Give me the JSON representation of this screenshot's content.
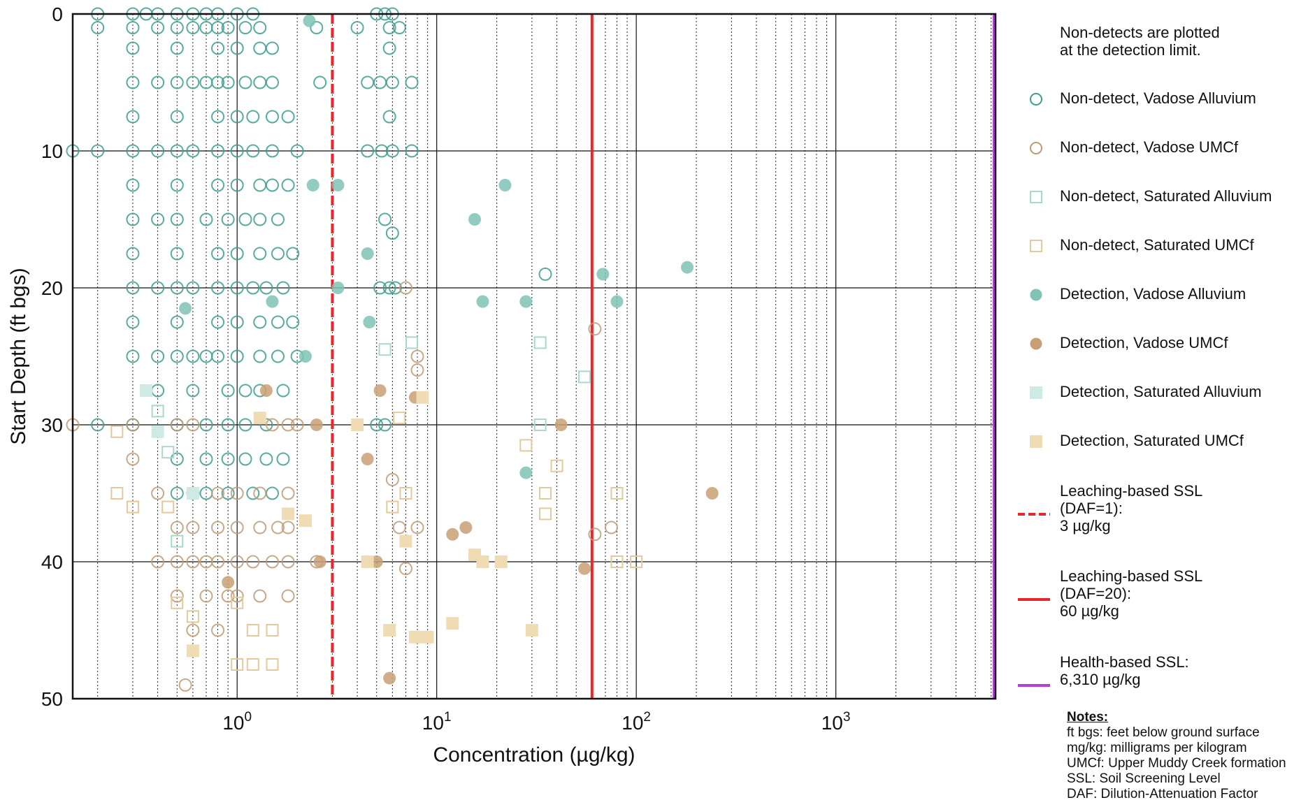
{
  "chart_data": {
    "type": "scatter",
    "x_scale": "log",
    "xlim": [
      0.15,
      6310
    ],
    "ylim": [
      0,
      50
    ],
    "y_inverted": true,
    "grid": "major solid, minor dotted vertical; major horizontal",
    "xlabel": "Concentration (µg/kg)",
    "ylabel": "Start Depth (ft bgs)",
    "x_ticks": [
      {
        "value": 1,
        "base": "10",
        "exp": "0"
      },
      {
        "value": 10,
        "base": "10",
        "exp": "1"
      },
      {
        "value": 100,
        "base": "10",
        "exp": "2"
      },
      {
        "value": 1000,
        "base": "10",
        "exp": "3"
      }
    ],
    "y_ticks": [
      {
        "value": 0,
        "label": "0"
      },
      {
        "value": 10,
        "label": "10"
      },
      {
        "value": 20,
        "label": "20"
      },
      {
        "value": 30,
        "label": "30"
      },
      {
        "value": 40,
        "label": "40"
      },
      {
        "value": 50,
        "label": "50"
      }
    ],
    "reference_lines": [
      {
        "name": "Leaching-based SSL (DAF=1)",
        "x": 3,
        "color": "#e8262b",
        "style": "dashed"
      },
      {
        "name": "Leaching-based SSL (DAF=20)",
        "x": 60,
        "color": "#e8262b",
        "style": "solid"
      },
      {
        "name": "Health-based SSL",
        "x": 6310,
        "color": "#b43ed6",
        "style": "solid"
      }
    ],
    "series": [
      {
        "name": "Non-detect, Vadose Alluvium",
        "marker": "circle-open",
        "color": "#3d9e8e",
        "points": [
          [
            0.2,
            0
          ],
          [
            0.3,
            0
          ],
          [
            0.35,
            0
          ],
          [
            0.4,
            0
          ],
          [
            0.5,
            0
          ],
          [
            0.6,
            0
          ],
          [
            0.7,
            0
          ],
          [
            0.8,
            0
          ],
          [
            1,
            0
          ],
          [
            1.2,
            0
          ],
          [
            5,
            0
          ],
          [
            5.5,
            0
          ],
          [
            6,
            0
          ],
          [
            0.2,
            1
          ],
          [
            0.3,
            1
          ],
          [
            0.4,
            1
          ],
          [
            0.5,
            1
          ],
          [
            0.6,
            1
          ],
          [
            0.7,
            1
          ],
          [
            0.8,
            1
          ],
          [
            0.9,
            1
          ],
          [
            1.1,
            1
          ],
          [
            1.3,
            1
          ],
          [
            2.5,
            1
          ],
          [
            4,
            1
          ],
          [
            5.8,
            1
          ],
          [
            6.5,
            1
          ],
          [
            0.3,
            2.5
          ],
          [
            0.5,
            2.5
          ],
          [
            0.8,
            2.5
          ],
          [
            1,
            2.5
          ],
          [
            1.3,
            2.5
          ],
          [
            1.5,
            2.5
          ],
          [
            5.8,
            2.5
          ],
          [
            0.3,
            5
          ],
          [
            0.4,
            5
          ],
          [
            0.5,
            5
          ],
          [
            0.6,
            5
          ],
          [
            0.7,
            5
          ],
          [
            0.8,
            5
          ],
          [
            0.9,
            5
          ],
          [
            1.1,
            5
          ],
          [
            1.3,
            5
          ],
          [
            1.5,
            5
          ],
          [
            2.6,
            5
          ],
          [
            4.5,
            5
          ],
          [
            5.2,
            5
          ],
          [
            6,
            5
          ],
          [
            7.5,
            5
          ],
          [
            0.3,
            7.5
          ],
          [
            0.5,
            7.5
          ],
          [
            0.8,
            7.5
          ],
          [
            1,
            7.5
          ],
          [
            1.2,
            7.5
          ],
          [
            1.5,
            7.5
          ],
          [
            1.8,
            7.5
          ],
          [
            5.8,
            7.5
          ],
          [
            0.15,
            10
          ],
          [
            0.2,
            10
          ],
          [
            0.3,
            10
          ],
          [
            0.4,
            10
          ],
          [
            0.5,
            10
          ],
          [
            0.6,
            10
          ],
          [
            0.8,
            10
          ],
          [
            1,
            10
          ],
          [
            1.2,
            10
          ],
          [
            1.5,
            10
          ],
          [
            2,
            10
          ],
          [
            4.5,
            10
          ],
          [
            5.3,
            10
          ],
          [
            6,
            10
          ],
          [
            7.5,
            10
          ],
          [
            0.3,
            12.5
          ],
          [
            0.5,
            12.5
          ],
          [
            0.8,
            12.5
          ],
          [
            1,
            12.5
          ],
          [
            1.3,
            12.5
          ],
          [
            1.5,
            12.5
          ],
          [
            1.8,
            12.5
          ],
          [
            0.3,
            15
          ],
          [
            0.4,
            15
          ],
          [
            0.5,
            15
          ],
          [
            0.7,
            15
          ],
          [
            0.9,
            15
          ],
          [
            1.1,
            15
          ],
          [
            1.3,
            15
          ],
          [
            1.6,
            15
          ],
          [
            5.5,
            15
          ],
          [
            0.3,
            17.5
          ],
          [
            0.5,
            17.5
          ],
          [
            0.8,
            17.5
          ],
          [
            1,
            17.5
          ],
          [
            1.3,
            17.5
          ],
          [
            1.6,
            17.5
          ],
          [
            1.9,
            17.5
          ],
          [
            6,
            16
          ],
          [
            0.3,
            20
          ],
          [
            0.4,
            20
          ],
          [
            0.5,
            20
          ],
          [
            0.6,
            20
          ],
          [
            0.8,
            20
          ],
          [
            1,
            20
          ],
          [
            1.2,
            20
          ],
          [
            1.4,
            20
          ],
          [
            1.7,
            20
          ],
          [
            5.2,
            20
          ],
          [
            5.8,
            20
          ],
          [
            6.2,
            20
          ],
          [
            35,
            19
          ],
          [
            0.3,
            22.5
          ],
          [
            0.5,
            22.5
          ],
          [
            0.8,
            22.5
          ],
          [
            1,
            22.5
          ],
          [
            1.3,
            22.5
          ],
          [
            1.6,
            22.5
          ],
          [
            1.9,
            22.5
          ],
          [
            0.3,
            25
          ],
          [
            0.4,
            25
          ],
          [
            0.5,
            25
          ],
          [
            0.6,
            25
          ],
          [
            0.7,
            25
          ],
          [
            0.8,
            25
          ],
          [
            1,
            25
          ],
          [
            1.3,
            25
          ],
          [
            1.6,
            25
          ],
          [
            2,
            25
          ],
          [
            0.4,
            27.5
          ],
          [
            0.6,
            27.5
          ],
          [
            0.9,
            27.5
          ],
          [
            1.1,
            27.5
          ],
          [
            1.3,
            27.5
          ],
          [
            1.7,
            27.5
          ],
          [
            0.2,
            30
          ],
          [
            0.3,
            30
          ],
          [
            0.5,
            30
          ],
          [
            0.7,
            30
          ],
          [
            0.9,
            30
          ],
          [
            1.1,
            30
          ],
          [
            1.4,
            30
          ],
          [
            5,
            30
          ],
          [
            5.5,
            30
          ],
          [
            0.5,
            32.5
          ],
          [
            0.7,
            32.5
          ],
          [
            0.9,
            32.5
          ],
          [
            1.1,
            32.5
          ],
          [
            1.4,
            32.5
          ],
          [
            1.7,
            32.5
          ],
          [
            0.5,
            35
          ],
          [
            0.7,
            35
          ],
          [
            0.9,
            35
          ],
          [
            1.2,
            35
          ],
          [
            1.5,
            35
          ]
        ]
      },
      {
        "name": "Non-detect, Vadose UMCf",
        "marker": "circle-open",
        "color": "#c09a74",
        "points": [
          [
            0.15,
            30
          ],
          [
            0.3,
            30
          ],
          [
            0.3,
            32.5
          ],
          [
            0.5,
            30
          ],
          [
            0.6,
            30
          ],
          [
            1.5,
            30
          ],
          [
            1.8,
            30
          ],
          [
            2,
            30
          ],
          [
            0.4,
            35
          ],
          [
            0.6,
            35
          ],
          [
            0.8,
            35
          ],
          [
            1,
            35
          ],
          [
            1.3,
            35
          ],
          [
            1.8,
            35
          ],
          [
            6,
            34
          ],
          [
            8,
            25
          ],
          [
            8,
            26
          ],
          [
            0.5,
            37.5
          ],
          [
            0.6,
            37.5
          ],
          [
            0.8,
            37.5
          ],
          [
            1,
            37.5
          ],
          [
            1.3,
            37.5
          ],
          [
            1.6,
            37.5
          ],
          [
            1.8,
            37.5
          ],
          [
            6.5,
            37.5
          ],
          [
            8,
            37.5
          ],
          [
            75,
            37.5
          ],
          [
            0.4,
            40
          ],
          [
            0.5,
            40
          ],
          [
            0.6,
            40
          ],
          [
            0.7,
            40
          ],
          [
            0.8,
            40
          ],
          [
            1,
            40
          ],
          [
            1.2,
            40
          ],
          [
            1.5,
            40
          ],
          [
            1.8,
            40
          ],
          [
            2.5,
            40
          ],
          [
            7,
            40.5
          ],
          [
            0.5,
            42.5
          ],
          [
            0.7,
            42.5
          ],
          [
            0.9,
            42.5
          ],
          [
            1,
            42.5
          ],
          [
            1.3,
            42.5
          ],
          [
            1.8,
            42.5
          ],
          [
            0.6,
            45
          ],
          [
            0.8,
            45
          ],
          [
            0.55,
            49
          ],
          [
            62,
            38
          ],
          [
            62,
            23
          ],
          [
            7,
            20
          ]
        ]
      },
      {
        "name": "Non-detect, Saturated Alluvium",
        "marker": "square-open",
        "color": "#a8d8d0",
        "points": [
          [
            0.4,
            29
          ],
          [
            0.45,
            32
          ],
          [
            0.5,
            38.5
          ],
          [
            5.5,
            24.5
          ],
          [
            7.5,
            24
          ],
          [
            33,
            24
          ],
          [
            55,
            26.5
          ],
          [
            33,
            30
          ]
        ]
      },
      {
        "name": "Non-detect, Saturated UMCf",
        "marker": "square-open",
        "color": "#e3c99c",
        "points": [
          [
            0.25,
            30.5
          ],
          [
            0.25,
            35
          ],
          [
            0.3,
            36
          ],
          [
            0.45,
            36
          ],
          [
            0.5,
            43
          ],
          [
            0.6,
            44
          ],
          [
            1,
            47.5
          ],
          [
            1.2,
            47.5
          ],
          [
            1.5,
            47.5
          ],
          [
            1.5,
            45
          ],
          [
            1.2,
            45
          ],
          [
            1,
            43
          ],
          [
            6,
            36
          ],
          [
            7,
            35
          ],
          [
            28,
            31.5
          ],
          [
            35,
            35
          ],
          [
            35,
            36.5
          ],
          [
            40,
            33
          ],
          [
            80,
            35
          ],
          [
            80,
            40
          ],
          [
            100,
            40
          ],
          [
            6.5,
            29.5
          ]
        ]
      },
      {
        "name": "Detection, Vadose Alluvium",
        "marker": "circle-filled",
        "color": "#7fc3b5",
        "points": [
          [
            2.3,
            0.5
          ],
          [
            3.2,
            12.5
          ],
          [
            2.4,
            12.5
          ],
          [
            4.5,
            17.5
          ],
          [
            3.2,
            20
          ],
          [
            4.6,
            22.5
          ],
          [
            15.5,
            15
          ],
          [
            17,
            21
          ],
          [
            22,
            12.5
          ],
          [
            28,
            21
          ],
          [
            68,
            19
          ],
          [
            80,
            21
          ],
          [
            180,
            18.5
          ],
          [
            28,
            33.5
          ],
          [
            0.55,
            21.5
          ],
          [
            1.5,
            21
          ],
          [
            2.2,
            25
          ]
        ]
      },
      {
        "name": "Detection, Vadose UMCf",
        "marker": "circle-filled",
        "color": "#c9a076",
        "points": [
          [
            1.4,
            27.5
          ],
          [
            5.2,
            27.5
          ],
          [
            7.8,
            28
          ],
          [
            2.5,
            30
          ],
          [
            4.5,
            32.5
          ],
          [
            12,
            38
          ],
          [
            14,
            37.5
          ],
          [
            42,
            30
          ],
          [
            55,
            40.5
          ],
          [
            240,
            35
          ],
          [
            0.9,
            41.5
          ],
          [
            5.8,
            48.5
          ],
          [
            2.6,
            40
          ],
          [
            5,
            40
          ]
        ]
      },
      {
        "name": "Detection, Saturated Alluvium",
        "marker": "square-filled",
        "color": "#cfe9e4",
        "points": [
          [
            0.35,
            27.5
          ],
          [
            0.4,
            30.5
          ],
          [
            0.6,
            35
          ]
        ]
      },
      {
        "name": "Detection, Saturated UMCf",
        "marker": "square-filled",
        "color": "#efdcb4",
        "points": [
          [
            0.6,
            46.5
          ],
          [
            1.3,
            29.5
          ],
          [
            1.8,
            36.5
          ],
          [
            2.2,
            37
          ],
          [
            4,
            30
          ],
          [
            4.5,
            40
          ],
          [
            5.8,
            45
          ],
          [
            7.8,
            45.5
          ],
          [
            8.5,
            28
          ],
          [
            9,
            45.5
          ],
          [
            12,
            44.5
          ],
          [
            17,
            40
          ],
          [
            21,
            40
          ],
          [
            30,
            45
          ],
          [
            15.5,
            39.5
          ],
          [
            7,
            38.5
          ]
        ]
      }
    ]
  },
  "legend": {
    "intro": "Non-detects are plotted\nat the detection limit.",
    "items": [
      {
        "label": "Non-detect, Vadose Alluvium"
      },
      {
        "label": "Non-detect, Vadose UMCf"
      },
      {
        "label": "Non-detect, Saturated Alluvium"
      },
      {
        "label": "Non-detect, Saturated UMCf"
      },
      {
        "label": "Detection, Vadose Alluvium"
      },
      {
        "label": "Detection, Vadose UMCf"
      },
      {
        "label": "Detection, Saturated Alluvium"
      },
      {
        "label": "Detection, Saturated UMCf"
      },
      {
        "label": "Leaching-based SSL\n(DAF=1):\n3 µg/kg"
      },
      {
        "label": "Leaching-based SSL\n(DAF=20):\n60 µg/kg"
      },
      {
        "label": "Health-based SSL:\n6,310 µg/kg"
      }
    ]
  },
  "notes": {
    "title": "Notes:",
    "lines": [
      "ft bgs: feet below ground surface",
      "mg/kg: milligrams per kilogram",
      "UMCf: Upper Muddy Creek formation",
      "SSL: Soil Screening Level",
      "DAF: Dilution-Attenuation Factor"
    ]
  }
}
